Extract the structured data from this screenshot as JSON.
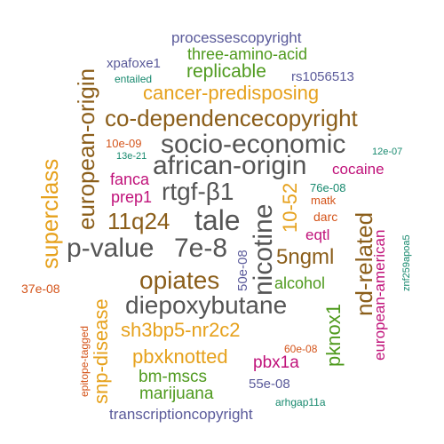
{
  "palette": {
    "purple": "#5a5a9a",
    "green": "#4f9a1e",
    "teal": "#17896e",
    "gold": "#e6a11c",
    "brown": "#8b5e1a",
    "gray": "#555555",
    "magenta": "#c0127a",
    "orange": "#d4541a"
  },
  "words": [
    {
      "id": "processescopyright",
      "text": "processescopyright",
      "color": "purple",
      "rotated": false
    },
    {
      "id": "three-amino-acid",
      "text": "three-amino-acid",
      "color": "green",
      "rotated": false
    },
    {
      "id": "xpafoxe1",
      "text": "xpafoxe1",
      "color": "purple",
      "rotated": false
    },
    {
      "id": "replicable",
      "text": "replicable",
      "color": "green",
      "rotated": false
    },
    {
      "id": "rs1056513",
      "text": "rs1056513",
      "color": "purple",
      "rotated": false
    },
    {
      "id": "entailed",
      "text": "entailed",
      "color": "teal",
      "rotated": false
    },
    {
      "id": "european-origin",
      "text": "european-origin",
      "color": "brown",
      "rotated": true
    },
    {
      "id": "cancer-predisposing",
      "text": "cancer-predisposing",
      "color": "gold",
      "rotated": false
    },
    {
      "id": "co-dependencecopyright",
      "text": "co-dependencecopyright",
      "color": "brown",
      "rotated": false
    },
    {
      "id": "10e-09",
      "text": "10e-09",
      "color": "orange",
      "rotated": false
    },
    {
      "id": "socio-economic",
      "text": "socio-economic",
      "color": "gray",
      "rotated": false
    },
    {
      "id": "12e-07",
      "text": "12e-07",
      "color": "teal",
      "rotated": false
    },
    {
      "id": "13e-21",
      "text": "13e-21",
      "color": "teal",
      "rotated": false
    },
    {
      "id": "african-origin",
      "text": "african-origin",
      "color": "gray",
      "rotated": false
    },
    {
      "id": "cocaine",
      "text": "cocaine",
      "color": "magenta",
      "rotated": false
    },
    {
      "id": "superclass",
      "text": "superclass",
      "color": "gold",
      "rotated": true
    },
    {
      "id": "fanca",
      "text": "fanca",
      "color": "magenta",
      "rotated": false
    },
    {
      "id": "rtgf-b1",
      "text": "rtgf-β1",
      "color": "gray",
      "rotated": false
    },
    {
      "id": "76e-08",
      "text": "76e-08",
      "color": "teal",
      "rotated": false
    },
    {
      "id": "prep1",
      "text": "prep1",
      "color": "magenta",
      "rotated": false
    },
    {
      "id": "nicotine",
      "text": "nicotine",
      "color": "gray",
      "rotated": true
    },
    {
      "id": "10-52",
      "text": "10-52",
      "color": "gold",
      "rotated": true
    },
    {
      "id": "matk",
      "text": "matk",
      "color": "orange",
      "rotated": false
    },
    {
      "id": "nd-related",
      "text": "nd-related",
      "color": "brown",
      "rotated": true
    },
    {
      "id": "european-american",
      "text": "european-american",
      "color": "magenta",
      "rotated": true
    },
    {
      "id": "11q24",
      "text": "11q24",
      "color": "brown",
      "rotated": false
    },
    {
      "id": "tale",
      "text": "tale",
      "color": "gray",
      "rotated": false
    },
    {
      "id": "darc",
      "text": "darc",
      "color": "orange",
      "rotated": false
    },
    {
      "id": "znf259apoa5",
      "text": "znf259apoa5",
      "color": "teal",
      "rotated": true
    },
    {
      "id": "eqtl",
      "text": "eqtl",
      "color": "magenta",
      "rotated": false
    },
    {
      "id": "p-value",
      "text": "p-value",
      "color": "gray",
      "rotated": false
    },
    {
      "id": "7e-8",
      "text": "7e-8",
      "color": "gray",
      "rotated": false
    },
    {
      "id": "5ngml",
      "text": "5ngml",
      "color": "brown",
      "rotated": false
    },
    {
      "id": "opiates",
      "text": "opiates",
      "color": "brown",
      "rotated": false
    },
    {
      "id": "50e-08",
      "text": "50e-08",
      "color": "purple",
      "rotated": true
    },
    {
      "id": "37e-08",
      "text": "37e-08",
      "color": "orange",
      "rotated": false
    },
    {
      "id": "snp-disease",
      "text": "snp-disease",
      "color": "gold",
      "rotated": true
    },
    {
      "id": "alcohol",
      "text": "alcohol",
      "color": "green",
      "rotated": false
    },
    {
      "id": "diepoxybutane",
      "text": "diepoxybutane",
      "color": "gray",
      "rotated": false
    },
    {
      "id": "pknox1",
      "text": "pknox1",
      "color": "green",
      "rotated": true
    },
    {
      "id": "sh3bp5-nr2c2",
      "text": "sh3bp5-nr2c2",
      "color": "gold",
      "rotated": false
    },
    {
      "id": "epitope-tagged",
      "text": "epitope-tagged",
      "color": "orange",
      "rotated": true
    },
    {
      "id": "60e-08",
      "text": "60e-08",
      "color": "orange",
      "rotated": false
    },
    {
      "id": "pbxknotted",
      "text": "pbxknotted",
      "color": "gold",
      "rotated": false
    },
    {
      "id": "pbx1a",
      "text": "pbx1a",
      "color": "magenta",
      "rotated": false
    },
    {
      "id": "bm-mscs",
      "text": "bm-mscs",
      "color": "green",
      "rotated": false
    },
    {
      "id": "55e-08",
      "text": "55e-08",
      "color": "purple",
      "rotated": false
    },
    {
      "id": "marijuana",
      "text": "marijuana",
      "color": "green",
      "rotated": false
    },
    {
      "id": "arhgap11a",
      "text": "arhgap11a",
      "color": "teal",
      "rotated": false
    },
    {
      "id": "transcriptioncopyright",
      "text": "transcriptioncopyright",
      "color": "purple",
      "rotated": false
    }
  ]
}
